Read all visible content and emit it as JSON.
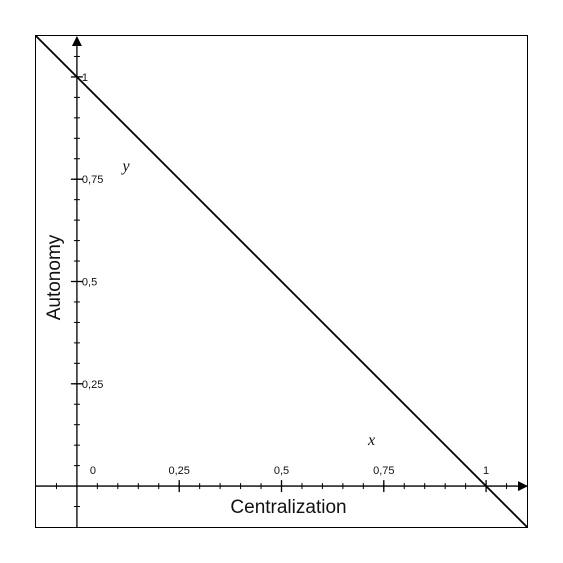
{
  "chart_data": {
    "type": "line",
    "title": "",
    "xlabel": "Centralization",
    "ylabel": "Autonomy",
    "xlim": [
      -0.1,
      1.1
    ],
    "ylim": [
      -0.1,
      1.1
    ],
    "x_ticks": [
      {
        "value": 0,
        "label": "0"
      },
      {
        "value": 0.25,
        "label": "0,25"
      },
      {
        "value": 0.5,
        "label": "0,5"
      },
      {
        "value": 0.75,
        "label": "0,75"
      },
      {
        "value": 1,
        "label": "1"
      }
    ],
    "y_ticks": [
      {
        "value": 0.25,
        "label": "0,25"
      },
      {
        "value": 0.5,
        "label": "0,5"
      },
      {
        "value": 0.75,
        "label": "0,75"
      },
      {
        "value": 1,
        "label": "1"
      }
    ],
    "minor_tick_step": 0.05,
    "grid": false,
    "series": [
      {
        "x": [
          -0.1,
          1.1
        ],
        "y": [
          1.1,
          -0.1
        ],
        "color": "#000000"
      }
    ],
    "annotations": [
      {
        "text": "y",
        "x": 0.12,
        "y": 0.77
      },
      {
        "text": "x",
        "x": 0.72,
        "y": 0.1
      }
    ]
  }
}
